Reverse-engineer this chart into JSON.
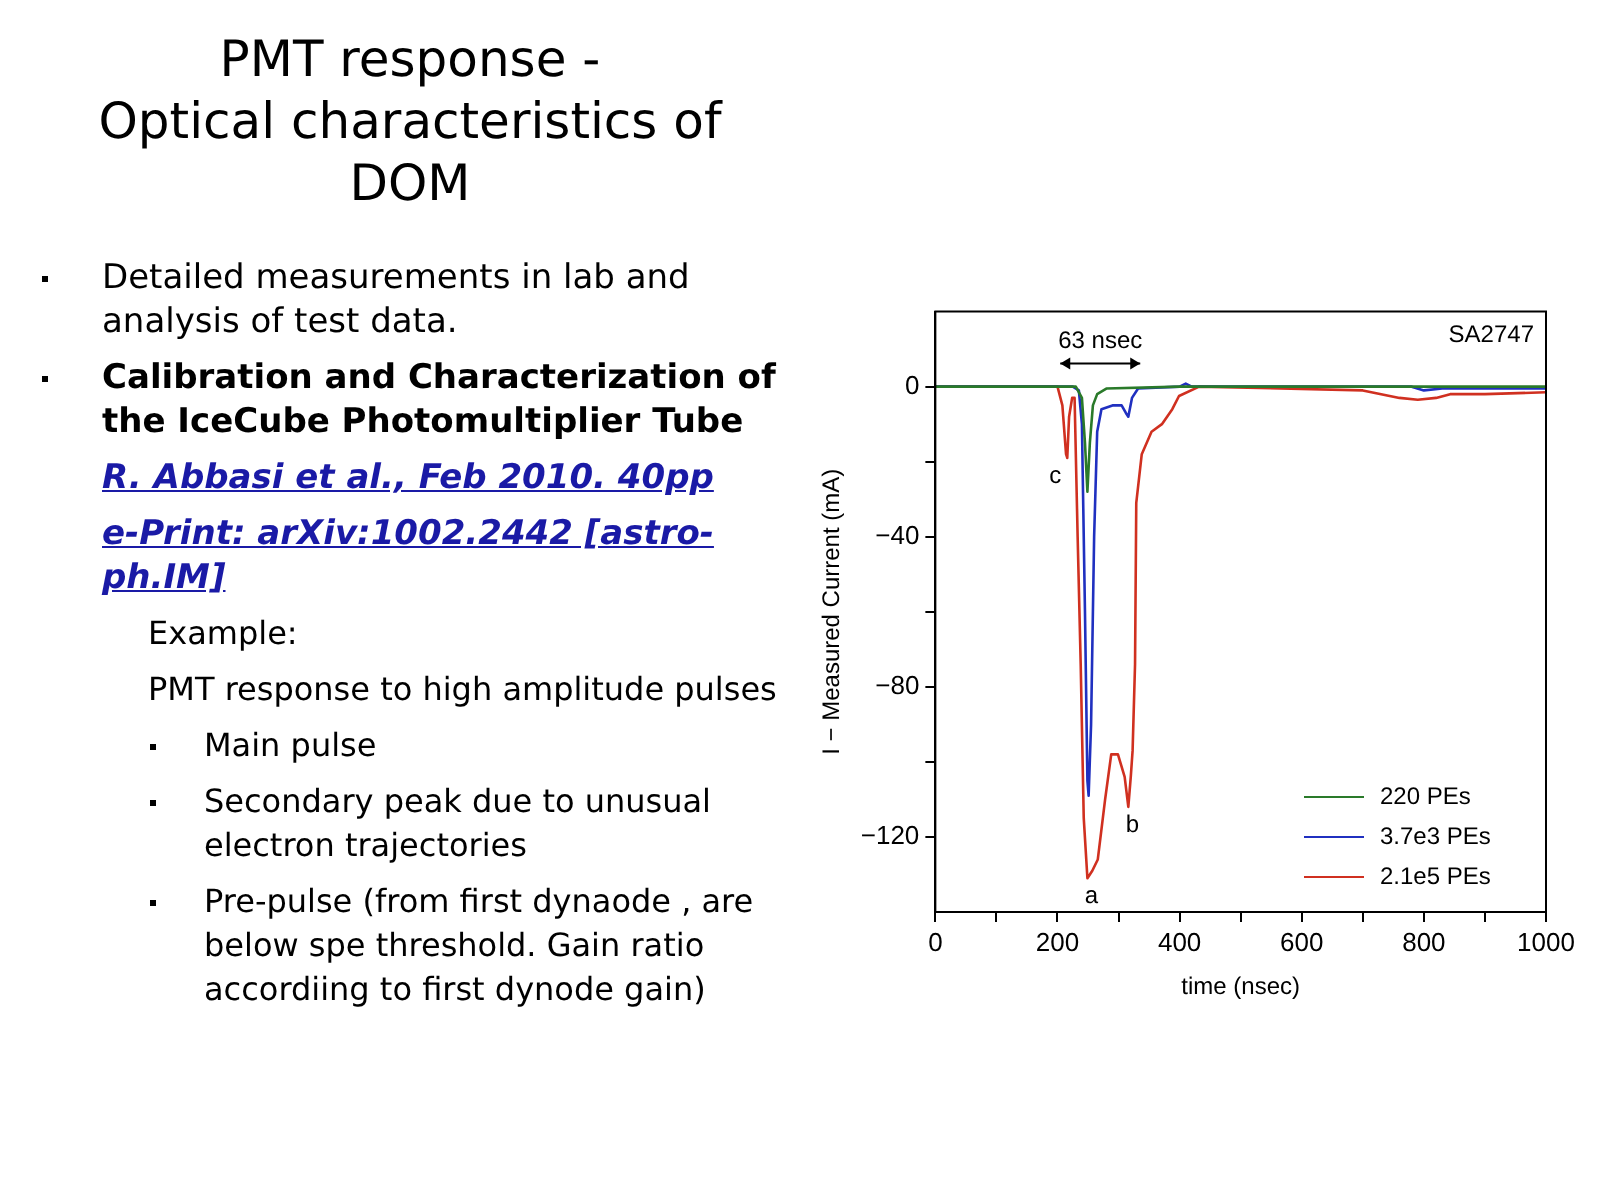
{
  "chart_data": {
    "type": "line",
    "title": "PMT response - Optical characteristics of DOM",
    "xlabel": "time (nsec)",
    "ylabel": "I − Measured Current (mA)",
    "xlim": [
      0,
      1000
    ],
    "xticks": [
      0,
      {
        "value": 100,
        "label": null
      },
      200,
      {
        "value": 300,
        "label": null
      },
      400,
      {
        "value": 500,
        "label": null
      },
      600,
      {
        "value": 700,
        "label": null
      },
      800,
      {
        "value": 900,
        "label": null
      },
      1000
    ],
    "ylim": [
      -140,
      20
    ],
    "yticks": [
      {
        "value": -120,
        "label": "−120"
      },
      {
        "value": -100,
        "label": null
      },
      {
        "value": -80,
        "label": "−80"
      },
      {
        "value": -60,
        "label": null
      },
      {
        "value": -40,
        "label": "−40"
      },
      {
        "value": -20,
        "label": null
      },
      0
    ],
    "grid": false,
    "legend": "bottom right",
    "marker": "none",
    "line_style": "solid",
    "series": [
      {
        "name": "220 PEs",
        "color": "#2a7a2a",
        "x": [
          0,
          230,
          240,
          245,
          249,
          253,
          258,
          265,
          280,
          400,
          1000
        ],
        "values": [
          0,
          0,
          -3,
          -15,
          -28,
          -15,
          -5,
          -2,
          -0.5,
          0,
          0
        ]
      },
      {
        "name": "3.7e3 PEs",
        "color": "#2030c0",
        "x": [
          0,
          225,
          235,
          240,
          245,
          249,
          251,
          255,
          260,
          265,
          272,
          290,
          305,
          312,
          316,
          322,
          332,
          400,
          410,
          420,
          780,
          800,
          830,
          1000
        ],
        "values": [
          0,
          0,
          -1,
          -10,
          -60,
          -105,
          -109,
          -90,
          -40,
          -12,
          -6,
          -5,
          -5,
          -7,
          -8,
          -3,
          -0.5,
          0,
          0.8,
          0,
          0,
          -1,
          -0.5,
          -0.5
        ]
      },
      {
        "name": "2.1e5 PEs",
        "color": "#d03020",
        "x": [
          0,
          200,
          208,
          214,
          216,
          219,
          224,
          228,
          233,
          238,
          243,
          249,
          257,
          266,
          278,
          288,
          299,
          310,
          316,
          320,
          323,
          327,
          329,
          338,
          354,
          371,
          388,
          399,
          432,
          700,
          760,
          790,
          820,
          843,
          900,
          1000
        ],
        "values": [
          0,
          0,
          -5,
          -18,
          -19,
          -8,
          -3,
          -3,
          -40,
          -74,
          -115,
          -131,
          -129,
          -126,
          -110,
          -98,
          -98,
          -104,
          -112,
          -104,
          -97,
          -74,
          -31,
          -18,
          -12,
          -10,
          -6,
          -2.5,
          0,
          -1,
          -3,
          -3.5,
          -3,
          -2,
          -2,
          -1.5
        ]
      }
    ],
    "annotations": [
      "SA2747",
      "63 nsec",
      {
        "text": "a",
        "x": 249,
        "y": -131
      },
      {
        "text": "b",
        "x": 316,
        "y": -112
      },
      {
        "text": "c",
        "x": 216,
        "y": -19
      },
      "Detailed measurements in lab and analysis of test data.",
      "Calibration and Characterization of the IceCube Photomultiplier Tube",
      "R. Abbasi     et al., Feb 2010. 40pp",
      "e-Print: arXiv:1002.2442 [astro-ph.IM]",
      "Example:",
      "PMT response to high amplitude pulses",
      "Main pulse",
      "Secondary peak due to unusual electron trajectories",
      "Pre-pulse (from first dynaode ,  are below spe threshold. Gain ratio accordiing to first dynode gain)"
    ]
  }
}
